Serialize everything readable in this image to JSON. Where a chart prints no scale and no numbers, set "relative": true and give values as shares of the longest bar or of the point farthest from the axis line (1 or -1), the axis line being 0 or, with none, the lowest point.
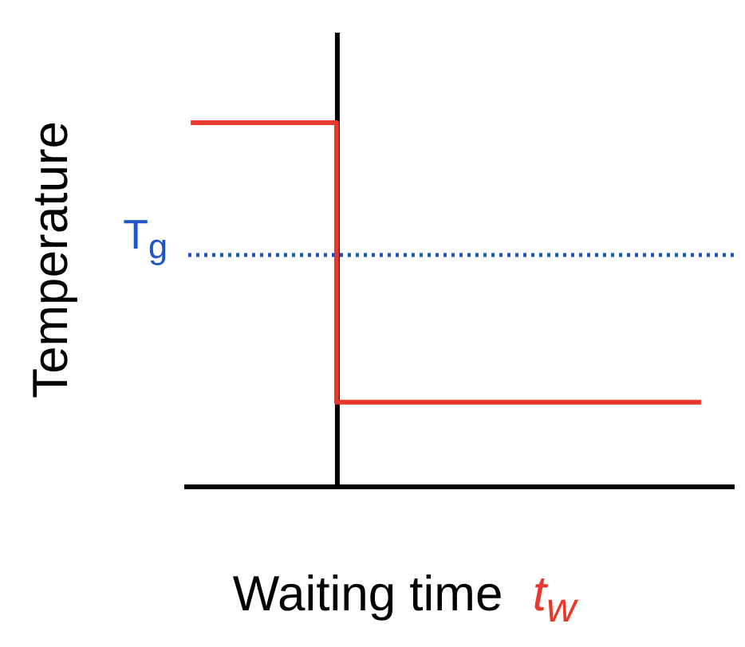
{
  "chart_data": {
    "type": "step",
    "relative": true,
    "xlabel": "Waiting time t$_{w}$",
    "ylabel": "Temperature",
    "categories": [
      null,
      null,
      null,
      null,
      null,
      null,
      null,
      null,
      null,
      null,
      null,
      null,
      null,
      null,
      null
    ],
    "series": [
      {
        "color": "#e8372c",
        "values": [
          1,
          1,
          1,
          1,
          0.231,
          0.231,
          0.231,
          0.231,
          0.231,
          0.231,
          0.231,
          0.231,
          0.231,
          0.231,
          0.231
        ]
      }
    ],
    "ref_lines": [
      {
        "axis": "y",
        "value": 0.636,
        "label": "T$_{g}$",
        "color": "#1f55c8",
        "line_style": "dotted"
      }
    ],
    "grid": false,
    "legend": false,
    "tick_labels": false
  }
}
